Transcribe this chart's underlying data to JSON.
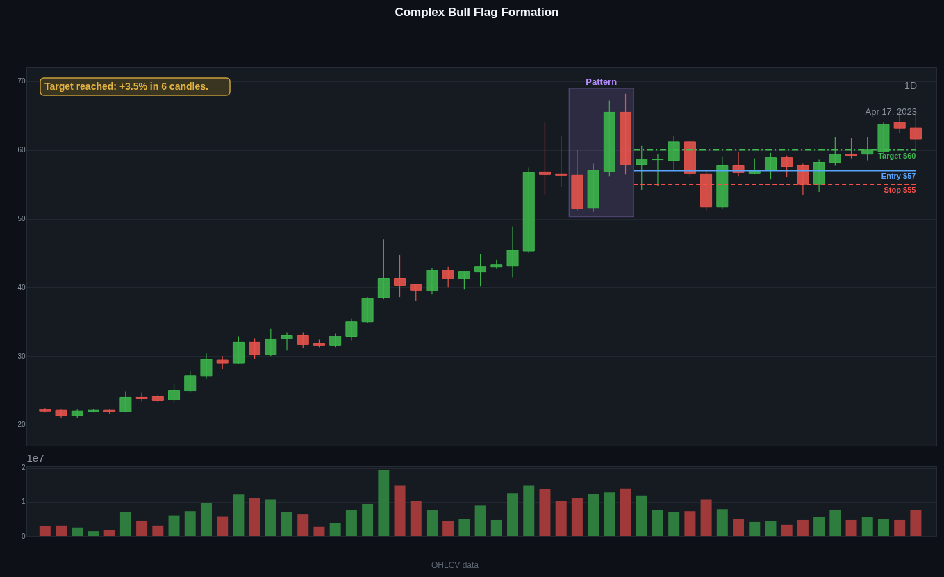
{
  "chart_data": [
    {
      "type": "candlestick",
      "title": "Complex Bull Flag Formation",
      "categories": [
        null,
        null,
        null,
        null,
        null,
        null,
        null,
        null,
        null,
        null,
        null,
        null,
        null,
        null,
        null,
        null,
        null,
        null,
        null,
        null,
        null,
        null,
        null,
        null,
        null,
        null,
        null,
        null,
        null,
        null,
        null,
        null,
        null,
        null,
        null,
        null,
        null,
        null,
        null,
        null,
        null,
        null,
        null,
        null,
        null,
        null,
        null,
        null,
        null,
        null,
        null,
        null,
        null,
        null,
        null
      ],
      "ohlc": [
        [
          22.2,
          22.4,
          21.8,
          22.0
        ],
        [
          22.1,
          22.2,
          20.9,
          21.3
        ],
        [
          21.3,
          22.2,
          21.0,
          22.0
        ],
        [
          21.9,
          22.3,
          21.8,
          22.1
        ],
        [
          22.1,
          22.2,
          21.6,
          21.9
        ],
        [
          21.9,
          24.8,
          21.8,
          24.0
        ],
        [
          24.0,
          24.7,
          23.4,
          23.8
        ],
        [
          24.1,
          24.4,
          23.3,
          23.5
        ],
        [
          23.6,
          25.9,
          23.2,
          25.0
        ],
        [
          24.9,
          27.8,
          24.7,
          27.1
        ],
        [
          27.1,
          30.4,
          26.7,
          29.5
        ],
        [
          29.4,
          30.0,
          28.1,
          29.0
        ],
        [
          29.0,
          32.8,
          28.8,
          32.0
        ],
        [
          32.0,
          32.6,
          29.5,
          30.2
        ],
        [
          30.2,
          34.0,
          30.0,
          32.5
        ],
        [
          32.5,
          33.4,
          30.8,
          33.0
        ],
        [
          33.0,
          33.4,
          31.2,
          31.7
        ],
        [
          31.8,
          32.4,
          31.3,
          31.6
        ],
        [
          31.6,
          33.3,
          31.3,
          32.9
        ],
        [
          32.8,
          35.4,
          32.3,
          35.0
        ],
        [
          35.0,
          38.6,
          34.8,
          38.4
        ],
        [
          38.5,
          47.0,
          38.3,
          41.3
        ],
        [
          41.3,
          44.7,
          38.6,
          40.3
        ],
        [
          40.4,
          40.5,
          38.0,
          39.6
        ],
        [
          39.5,
          42.8,
          39.0,
          42.5
        ],
        [
          42.5,
          43.0,
          40.0,
          41.2
        ],
        [
          41.2,
          42.3,
          39.7,
          42.3
        ],
        [
          42.3,
          44.9,
          40.1,
          43.0
        ],
        [
          43.0,
          44.0,
          42.7,
          43.3
        ],
        [
          43.1,
          48.9,
          41.4,
          45.4
        ],
        [
          45.3,
          57.5,
          45.0,
          56.7
        ],
        [
          56.8,
          64.0,
          53.5,
          56.4
        ],
        [
          56.5,
          62.0,
          54.6,
          56.3
        ],
        [
          56.3,
          60.0,
          51.2,
          51.5
        ],
        [
          51.6,
          58.0,
          51.0,
          57.0
        ],
        [
          56.9,
          67.2,
          56.2,
          65.5
        ],
        [
          65.5,
          68.2,
          56.4,
          57.8
        ],
        [
          57.9,
          60.6,
          54.2,
          58.7
        ],
        [
          58.6,
          59.4,
          54.8,
          58.7
        ],
        [
          58.5,
          62.1,
          57.0,
          61.2
        ],
        [
          61.2,
          61.3,
          56.1,
          56.6
        ],
        [
          56.5,
          57.0,
          51.2,
          51.7
        ],
        [
          51.7,
          59.0,
          51.4,
          57.7
        ],
        [
          57.7,
          59.7,
          56.2,
          56.7
        ],
        [
          56.6,
          58.8,
          56.4,
          56.9
        ],
        [
          57.0,
          59.6,
          55.7,
          58.9
        ],
        [
          58.9,
          59.2,
          56.1,
          57.6
        ],
        [
          57.7,
          58.0,
          53.5,
          55.0
        ],
        [
          55.0,
          58.6,
          53.9,
          58.2
        ],
        [
          58.2,
          61.9,
          57.7,
          59.4
        ],
        [
          59.4,
          61.8,
          58.8,
          59.2
        ],
        [
          59.4,
          61.9,
          58.5,
          60.0
        ],
        [
          59.8,
          64.0,
          59.5,
          63.7
        ],
        [
          64.0,
          65.9,
          62.4,
          63.2
        ],
        [
          63.2,
          65.2,
          59.7,
          61.6
        ]
      ],
      "colors": [
        "#e5534b",
        "#e5534b",
        "#3cb44b",
        "#3cb44b",
        "#e5534b",
        "#3cb44b",
        "#e5534b",
        "#e5534b",
        "#3cb44b",
        "#3cb44b",
        "#3cb44b",
        "#e5534b",
        "#3cb44b",
        "#e5534b",
        "#3cb44b",
        "#3cb44b",
        "#e5534b",
        "#e5534b",
        "#3cb44b",
        "#3cb44b",
        "#3cb44b",
        "#3cb44b",
        "#e5534b",
        "#e5534b",
        "#3cb44b",
        "#e5534b",
        "#3cb44b",
        "#3cb44b",
        "#3cb44b",
        "#3cb44b",
        "#3cb44b",
        "#e5534b",
        "#e5534b",
        "#e5534b",
        "#3cb44b",
        "#3cb44b",
        "#e5534b",
        "#3cb44b",
        "#3cb44b",
        "#3cb44b",
        "#e5534b",
        "#e5534b",
        "#3cb44b",
        "#e5534b",
        "#3cb44b",
        "#3cb44b",
        "#e5534b",
        "#e5534b",
        "#3cb44b",
        "#3cb44b",
        "#e5534b",
        "#3cb44b",
        "#3cb44b",
        "#e5534b",
        "#e5534b"
      ],
      "ylim": [
        16.96,
        72.02
      ],
      "yticks": [
        20,
        30,
        40,
        50,
        60,
        70
      ],
      "grid": "y",
      "tick_labels": "y",
      "bands": [
        {
          "axis": "y",
          "from": 50.3,
          "to": 69,
          "label": "Pattern",
          "color": "#b48cff"
        }
      ],
      "ref_lines": [
        {
          "axis": "y",
          "value": 60,
          "label": "Target $60",
          "color": "#3fb950",
          "line_style": "dashdot"
        },
        {
          "axis": "y",
          "value": 57,
          "label": "Entry $57",
          "color": "#58a6ff",
          "line_style": "solid"
        },
        {
          "axis": "y",
          "value": 55,
          "label": "Stop $55",
          "color": "#f85149",
          "line_style": "dashed"
        }
      ],
      "annotations": [
        "Target reached: +3.5% in 6 candles.",
        "1D",
        "Apr 17, 2023"
      ]
    },
    {
      "type": "bar",
      "categories": [
        null,
        null,
        null,
        null,
        null,
        null,
        null,
        null,
        null,
        null,
        null,
        null,
        null,
        null,
        null,
        null,
        null,
        null,
        null,
        null,
        null,
        null,
        null,
        null,
        null,
        null,
        null,
        null,
        null,
        null,
        null,
        null,
        null,
        null,
        null,
        null,
        null,
        null,
        null,
        null,
        null,
        null,
        null,
        null,
        null,
        null,
        null,
        null,
        null,
        null,
        null,
        null,
        null,
        null,
        null
      ],
      "values": [
        0.29,
        0.31,
        0.25,
        0.14,
        0.17,
        0.71,
        0.45,
        0.31,
        0.6,
        0.73,
        0.97,
        0.58,
        1.22,
        1.11,
        1.07,
        0.71,
        0.63,
        0.27,
        0.37,
        0.77,
        0.94,
        1.94,
        1.48,
        1.04,
        0.76,
        0.43,
        0.49,
        0.89,
        0.47,
        1.26,
        1.48,
        1.38,
        1.04,
        1.11,
        1.23,
        1.28,
        1.39,
        1.19,
        0.76,
        0.71,
        0.73,
        1.07,
        0.79,
        0.51,
        0.41,
        0.43,
        0.33,
        0.47,
        0.57,
        0.77,
        0.47,
        0.55,
        0.51,
        0.47,
        0.77
      ],
      "colors": [
        "#a03a3a",
        "#a03a3a",
        "#2e7d3e",
        "#2e7d3e",
        "#a03a3a",
        "#2e7d3e",
        "#a03a3a",
        "#a03a3a",
        "#2e7d3e",
        "#2e7d3e",
        "#2e7d3e",
        "#a03a3a",
        "#2e7d3e",
        "#a03a3a",
        "#2e7d3e",
        "#2e7d3e",
        "#a03a3a",
        "#a03a3a",
        "#2e7d3e",
        "#2e7d3e",
        "#2e7d3e",
        "#2e7d3e",
        "#a03a3a",
        "#a03a3a",
        "#2e7d3e",
        "#a03a3a",
        "#2e7d3e",
        "#2e7d3e",
        "#2e7d3e",
        "#2e7d3e",
        "#2e7d3e",
        "#a03a3a",
        "#a03a3a",
        "#a03a3a",
        "#2e7d3e",
        "#2e7d3e",
        "#a03a3a",
        "#2e7d3e",
        "#2e7d3e",
        "#2e7d3e",
        "#a03a3a",
        "#a03a3a",
        "#2e7d3e",
        "#a03a3a",
        "#2e7d3e",
        "#2e7d3e",
        "#a03a3a",
        "#a03a3a",
        "#2e7d3e",
        "#2e7d3e",
        "#a03a3a",
        "#2e7d3e",
        "#2e7d3e",
        "#a03a3a",
        "#a03a3a"
      ],
      "ylabel": "1e7",
      "ylim": [
        0,
        2.04
      ],
      "yticks": [
        0,
        1,
        2
      ],
      "grid": "y",
      "tick_labels": "y",
      "annotations": [
        "OHLCV data"
      ]
    }
  ]
}
